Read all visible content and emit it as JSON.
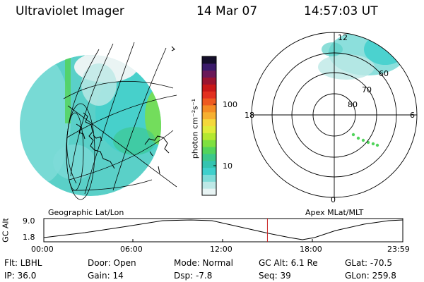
{
  "header": {
    "instrument": "Ultraviolet Imager",
    "date": "14 Mar 07",
    "time": "14:57:03 UT"
  },
  "colorbar": {
    "label": "photon cm⁻²s⁻¹",
    "ticks": [
      "100",
      "10"
    ],
    "colors": [
      "#e8f4f4",
      "#bde8e6",
      "#7fdcd8",
      "#3fd0cc",
      "#34c4b0",
      "#3cc88a",
      "#52d45c",
      "#7ee040",
      "#b4e830",
      "#e0ec3a",
      "#f4d83a",
      "#f6b030",
      "#f48c24",
      "#ee5a20",
      "#e23020",
      "#c81818",
      "#9a1430",
      "#6a1858",
      "#3a1a6a",
      "#140e2a"
    ]
  },
  "geo_panel": {
    "title": "Geographic Lat/Lon"
  },
  "apex_panel": {
    "title": "Apex MLat/MLT",
    "mlt_labels": {
      "top": "12",
      "bottom": "0",
      "left": "18",
      "right": "6"
    },
    "lat_labels": [
      "60",
      "70",
      "80"
    ]
  },
  "timeline": {
    "ylabel": "GC Alt",
    "yticks": [
      "9.0",
      "1.8"
    ],
    "xticks": [
      "00:00",
      "06:00",
      "12:00",
      "18:00",
      "23:59"
    ],
    "current_time_fraction": 0.6229
  },
  "info": {
    "flt": "Flt: LBHL",
    "ip": "IP: 36.0",
    "door": "Door: Open",
    "gain": "Gain: 14",
    "mode": "Mode: Normal",
    "dsp": "Dsp:   -7.8",
    "gcalt": "GC Alt: 6.1 Re",
    "seq": "Seq: 39",
    "glat": "GLat: -70.5",
    "glon": "GLon: 259.8"
  }
}
